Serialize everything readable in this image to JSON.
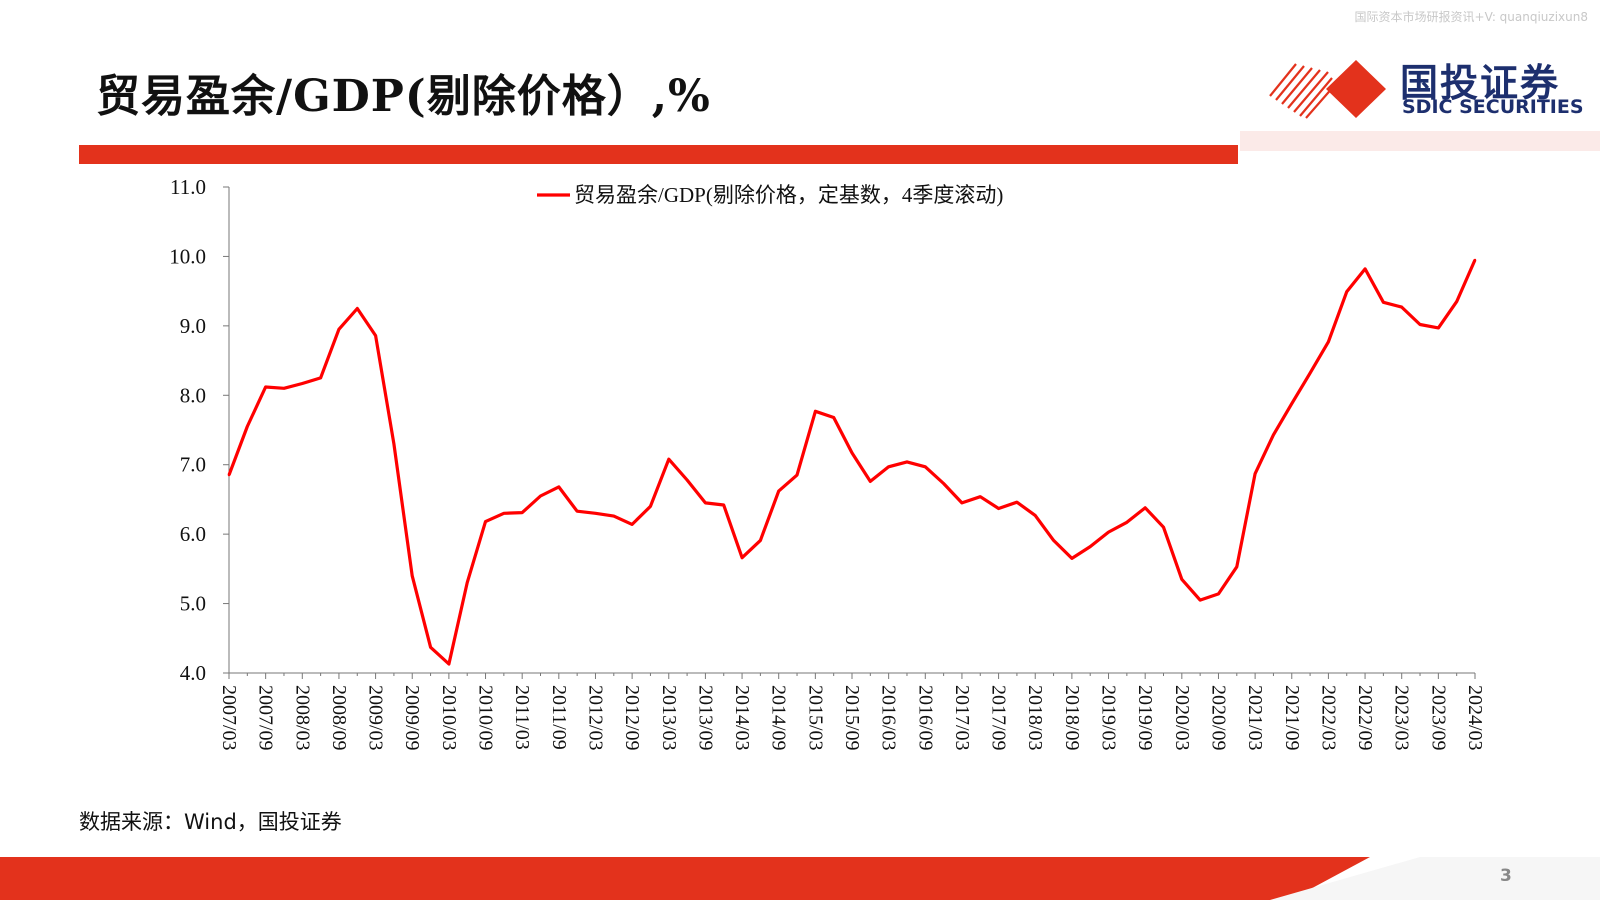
{
  "watermark": "国际资本市场研报资讯+V: quanqiuzixun8",
  "title": "贸易盈余/GDP(剔除价格）,%",
  "logo": {
    "cn": "国投证券",
    "en": "SDIC SECURITIES"
  },
  "source": "数据来源：Wind，国投证券",
  "page_number": "3",
  "colors": {
    "accent": "#e3321c",
    "series": "#ff0000",
    "brand_navy": "#1d2f6e"
  },
  "chart_data": {
    "type": "line",
    "title": "",
    "xlabel": "",
    "ylabel": "",
    "ylim": [
      4.0,
      11.0
    ],
    "y_ticks": [
      "4.0",
      "5.0",
      "6.0",
      "7.0",
      "8.0",
      "9.0",
      "10.0",
      "11.0"
    ],
    "x_tick_labels": [
      "2007/03",
      "2007/09",
      "2008/03",
      "2008/09",
      "2009/03",
      "2009/09",
      "2010/03",
      "2010/09",
      "2011/03",
      "2011/09",
      "2012/03",
      "2012/09",
      "2013/03",
      "2013/09",
      "2014/03",
      "2014/09",
      "2015/03",
      "2015/09",
      "2016/03",
      "2016/09",
      "2017/03",
      "2017/09",
      "2018/03",
      "2018/09",
      "2019/03",
      "2019/09",
      "2020/03",
      "2020/09",
      "2021/03",
      "2021/09",
      "2022/03",
      "2022/09",
      "2023/03",
      "2023/09",
      "2024/03"
    ],
    "legend_position": "top-center",
    "grid": false,
    "x": [
      "2007/03",
      "2007/06",
      "2007/09",
      "2007/12",
      "2008/03",
      "2008/06",
      "2008/09",
      "2008/12",
      "2009/03",
      "2009/06",
      "2009/09",
      "2009/12",
      "2010/03",
      "2010/06",
      "2010/09",
      "2010/12",
      "2011/03",
      "2011/06",
      "2011/09",
      "2011/12",
      "2012/03",
      "2012/06",
      "2012/09",
      "2012/12",
      "2013/03",
      "2013/06",
      "2013/09",
      "2013/12",
      "2014/03",
      "2014/06",
      "2014/09",
      "2014/12",
      "2015/03",
      "2015/06",
      "2015/09",
      "2015/12",
      "2016/03",
      "2016/06",
      "2016/09",
      "2016/12",
      "2017/03",
      "2017/06",
      "2017/09",
      "2017/12",
      "2018/03",
      "2018/06",
      "2018/09",
      "2018/12",
      "2019/03",
      "2019/06",
      "2019/09",
      "2019/12",
      "2020/03",
      "2020/06",
      "2020/09",
      "2020/12",
      "2021/03",
      "2021/06",
      "2021/09",
      "2021/12",
      "2022/03",
      "2022/06",
      "2022/09",
      "2022/12",
      "2023/03",
      "2023/06",
      "2023/09",
      "2023/12",
      "2024/03"
    ],
    "series": [
      {
        "name": "贸易盈余/GDP(剔除价格，定基数，4季度滚动)",
        "color": "#ff0000",
        "values": [
          6.85,
          7.55,
          8.12,
          8.1,
          8.17,
          8.25,
          8.95,
          9.25,
          8.86,
          7.3,
          5.4,
          4.37,
          4.13,
          5.3,
          6.18,
          6.3,
          6.31,
          6.55,
          6.68,
          6.33,
          6.3,
          6.26,
          6.14,
          6.4,
          7.08,
          6.78,
          6.45,
          6.42,
          5.66,
          5.91,
          6.62,
          6.85,
          7.77,
          7.68,
          7.17,
          6.76,
          6.97,
          7.04,
          6.97,
          6.73,
          6.45,
          6.54,
          6.37,
          6.46,
          6.27,
          5.91,
          5.65,
          5.82,
          6.03,
          6.17,
          6.38,
          6.1,
          5.35,
          5.05,
          5.14,
          5.53,
          6.87,
          7.43,
          7.88,
          8.32,
          8.77,
          9.49,
          9.82,
          9.34,
          9.27,
          9.02,
          8.97,
          9.35,
          9.95
        ]
      }
    ]
  }
}
